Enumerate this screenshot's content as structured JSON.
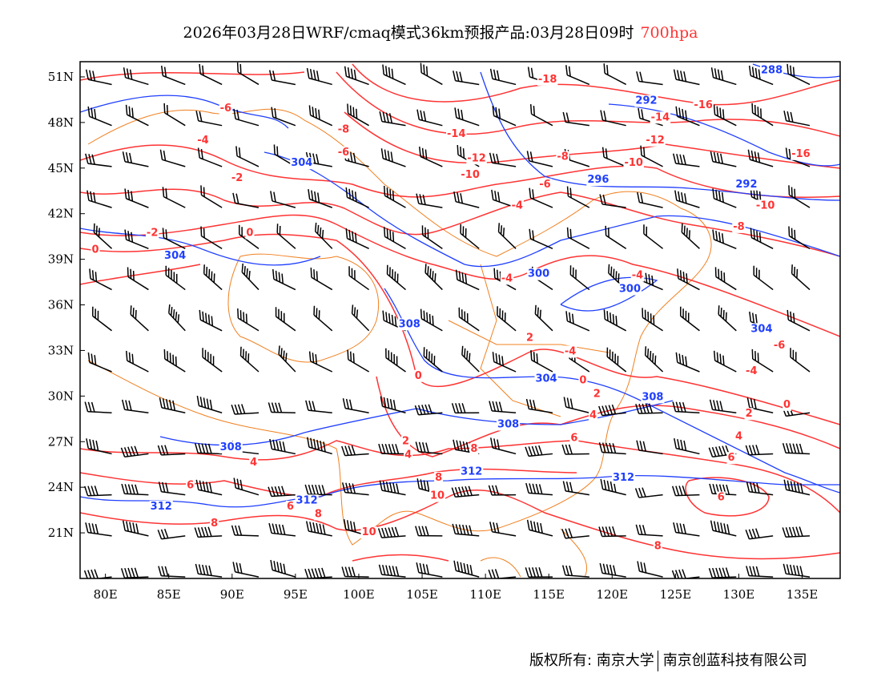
{
  "title": {
    "text": "2026年03月28日WRF/cmaq模式36km预报产品:03月28日09时",
    "level": "700hpa",
    "level_color": "#ff3333"
  },
  "footer": {
    "copyright": "版权所有: 南京大学",
    "company": "南京创蓝科技有限公司"
  },
  "map": {
    "lon_range": [
      78,
      138
    ],
    "lat_range": [
      18,
      52
    ],
    "lon_ticks": [
      {
        "v": 80,
        "label": "80E"
      },
      {
        "v": 85,
        "label": "85E"
      },
      {
        "v": 90,
        "label": "90E"
      },
      {
        "v": 95,
        "label": "95E"
      },
      {
        "v": 100,
        "label": "100E"
      },
      {
        "v": 105,
        "label": "105E"
      },
      {
        "v": 110,
        "label": "110E"
      },
      {
        "v": 115,
        "label": "115E"
      },
      {
        "v": 120,
        "label": "120E"
      },
      {
        "v": 125,
        "label": "125E"
      },
      {
        "v": 130,
        "label": "130E"
      },
      {
        "v": 135,
        "label": "135E"
      }
    ],
    "lat_ticks": [
      {
        "v": 21,
        "label": "21N"
      },
      {
        "v": 24,
        "label": "24N"
      },
      {
        "v": 27,
        "label": "27N"
      },
      {
        "v": 30,
        "label": "30N"
      },
      {
        "v": 33,
        "label": "33N"
      },
      {
        "v": 36,
        "label": "36N"
      },
      {
        "v": 39,
        "label": "39N"
      },
      {
        "v": 42,
        "label": "42N"
      },
      {
        "v": 45,
        "label": "45N"
      },
      {
        "v": 48,
        "label": "48N"
      },
      {
        "v": 51,
        "label": "51N"
      }
    ],
    "colors": {
      "temperature": "#ff3333",
      "height": "#1f3fff",
      "boundary": "#f08020",
      "wind": "#000000"
    },
    "temperature_labels": [
      {
        "lon": 114.9,
        "lat": 50.9,
        "t": "-18"
      },
      {
        "lon": 127.2,
        "lat": 49.2,
        "t": "-16"
      },
      {
        "lon": 123.8,
        "lat": 48.4,
        "t": "-14"
      },
      {
        "lon": 107.7,
        "lat": 47.3,
        "t": "-14"
      },
      {
        "lon": 109.3,
        "lat": 46.5,
        "t": "-12"
      },
      {
        "lon": 123.4,
        "lat": 46.9,
        "t": "-12"
      },
      {
        "lon": 108.8,
        "lat": 45.4,
        "t": "-10"
      },
      {
        "lon": 121.7,
        "lat": 45.4,
        "t": "-10"
      },
      {
        "lon": 116.1,
        "lat": 45.8,
        "t": "-8"
      },
      {
        "lon": 114.7,
        "lat": 44.0,
        "t": "-6"
      },
      {
        "lon": 112.5,
        "lat": 42.6,
        "t": "-4"
      },
      {
        "lon": 111.7,
        "lat": 37.8,
        "t": "-4"
      },
      {
        "lon": 122.0,
        "lat": 38.0,
        "t": "-4"
      },
      {
        "lon": 116.7,
        "lat": 33.0,
        "t": "-4"
      },
      {
        "lon": 131.0,
        "lat": 31.7,
        "t": "-4"
      },
      {
        "lon": 133.2,
        "lat": 33.4,
        "t": "-6"
      },
      {
        "lon": 134.9,
        "lat": 46.0,
        "t": "-16"
      },
      {
        "lon": 132.1,
        "lat": 42.6,
        "t": "-10"
      },
      {
        "lon": 130.0,
        "lat": 41.2,
        "t": "-8"
      },
      {
        "lon": 98.8,
        "lat": 47.6,
        "t": "-8"
      },
      {
        "lon": 98.8,
        "lat": 46.9,
        "t": "-6"
      },
      {
        "lon": 89.5,
        "lat": 49.0,
        "t": "-6"
      },
      {
        "lon": 90.4,
        "lat": 44.4,
        "t": "-2"
      },
      {
        "lon": 87.7,
        "lat": 46.9,
        "t": "-4"
      },
      {
        "lon": 83.7,
        "lat": 40.8,
        "t": "-2"
      },
      {
        "lon": 91.4,
        "lat": 40.8,
        "t": "0"
      },
      {
        "lon": 79.2,
        "lat": 39.7,
        "t": "0"
      },
      {
        "lon": 104.7,
        "lat": 31.4,
        "t": "0"
      },
      {
        "lon": 117.7,
        "lat": 31.1,
        "t": "0"
      },
      {
        "lon": 133.8,
        "lat": 29.5,
        "t": "0"
      },
      {
        "lon": 113.5,
        "lat": 33.9,
        "t": "2"
      },
      {
        "lon": 118.8,
        "lat": 30.2,
        "t": "2"
      },
      {
        "lon": 130.8,
        "lat": 28.9,
        "t": "2"
      },
      {
        "lon": 103.7,
        "lat": 27.1,
        "t": "2"
      },
      {
        "lon": 118.5,
        "lat": 28.8,
        "t": "4"
      },
      {
        "lon": 130.0,
        "lat": 27.4,
        "t": "4"
      },
      {
        "lon": 91.7,
        "lat": 25.7,
        "t": "4"
      },
      {
        "lon": 103.9,
        "lat": 26.2,
        "t": "4"
      },
      {
        "lon": 117.0,
        "lat": 27.3,
        "t": "6"
      },
      {
        "lon": 129.4,
        "lat": 26.0,
        "t": "6"
      },
      {
        "lon": 86.7,
        "lat": 24.2,
        "t": "6"
      },
      {
        "lon": 109.1,
        "lat": 26.6,
        "t": "8"
      },
      {
        "lon": 96.8,
        "lat": 22.3,
        "t": "8"
      },
      {
        "lon": 128.6,
        "lat": 23.4,
        "t": "6"
      },
      {
        "lon": 106.3,
        "lat": 24.7,
        "t": "8"
      },
      {
        "lon": 106.2,
        "lat": 23.5,
        "t": "10"
      },
      {
        "lon": 100.8,
        "lat": 21.1,
        "t": "10"
      },
      {
        "lon": 123.6,
        "lat": 20.2,
        "t": "8"
      },
      {
        "lon": 88.6,
        "lat": 21.7,
        "t": "8"
      },
      {
        "lon": 94.6,
        "lat": 22.8,
        "t": "6"
      }
    ],
    "height_labels": [
      {
        "lon": 132.6,
        "lat": 51.5,
        "t": "288"
      },
      {
        "lon": 122.7,
        "lat": 48.7,
        "t": "292"
      },
      {
        "lon": 118.9,
        "lat": 44.3,
        "t": "296"
      },
      {
        "lon": 130.6,
        "lat": 44.0,
        "t": "292"
      },
      {
        "lon": 95.5,
        "lat": 45.4,
        "t": "304"
      },
      {
        "lon": 85.5,
        "lat": 39.3,
        "t": "304"
      },
      {
        "lon": 114.2,
        "lat": 38.1,
        "t": "300"
      },
      {
        "lon": 121.4,
        "lat": 37.9,
        "t": "300"
      },
      {
        "lon": 104.0,
        "lat": 34.8,
        "t": "308"
      },
      {
        "lon": 114.8,
        "lat": 31.2,
        "t": "304"
      },
      {
        "lon": 131.8,
        "lat": 32.9,
        "t": "304"
      },
      {
        "lon": 123.2,
        "lat": 30.0,
        "t": "308"
      },
      {
        "lon": 111.8,
        "lat": 28.2,
        "t": "308"
      },
      {
        "lon": 89.9,
        "lat": 26.7,
        "t": "308"
      },
      {
        "lon": 108.9,
        "lat": 25.1,
        "t": "312"
      },
      {
        "lon": 120.9,
        "lat": 24.7,
        "t": "312"
      },
      {
        "lon": 84.4,
        "lat": 22.8,
        "t": "312"
      },
      {
        "lon": 95.9,
        "lat": 23.2,
        "t": "312"
      }
    ]
  }
}
